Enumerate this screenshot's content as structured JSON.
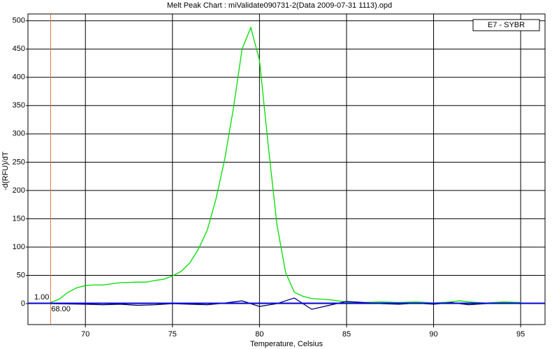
{
  "chart_data": {
    "type": "line",
    "title": "Melt Peak Chart : miValidate090731-2(Data 2009-07-31 1113).opd",
    "x_label": "Temperature, Celsius",
    "y_label": "-d(RFU)/dT",
    "xlim": [
      66.7,
      96.4
    ],
    "ylim": [
      -37,
      512
    ],
    "xticks": [
      70,
      75,
      80,
      85,
      90,
      95
    ],
    "yticks": [
      0,
      50,
      100,
      150,
      200,
      250,
      300,
      350,
      400,
      450,
      500
    ],
    "grid": true,
    "legend": "top-right",
    "threshold": {
      "value": 1,
      "label": "1.00",
      "color": "#0000ff"
    },
    "marker_x": {
      "value": 68,
      "label": "68.00",
      "color": "#e07040"
    },
    "series": [
      {
        "name": "E7 - SYBR",
        "color": "#00dd00",
        "x": [
          68,
          68.5,
          69,
          69.5,
          70,
          70.5,
          71,
          71.5,
          72,
          73,
          73.5,
          74,
          74.5,
          75,
          75.5,
          76,
          76.5,
          77,
          77.5,
          78,
          78.5,
          79,
          79.5,
          80,
          80.5,
          81,
          81.5,
          82,
          82.5,
          83,
          84,
          85,
          86,
          87,
          88,
          89,
          90,
          91,
          91.5,
          92,
          93,
          94,
          95
        ],
        "values": [
          2,
          8,
          20,
          28,
          32,
          33,
          33,
          35,
          37,
          38,
          38,
          41,
          43,
          49,
          57,
          72,
          97,
          130,
          185,
          255,
          345,
          450,
          488,
          430,
          280,
          140,
          55,
          20,
          13,
          9,
          7,
          3,
          2,
          3,
          2,
          3,
          1,
          3,
          5,
          3,
          1,
          3,
          2
        ]
      },
      {
        "color": "#000080",
        "x": [
          68,
          70,
          71,
          72,
          73,
          74,
          75,
          76,
          77,
          78,
          79,
          80,
          81,
          82,
          83,
          84,
          85,
          86,
          87,
          88,
          89,
          90,
          91,
          92,
          93,
          94,
          95
        ],
        "values": [
          0,
          -1,
          -2,
          -1,
          -3,
          -2,
          0,
          -1,
          -2,
          1,
          5,
          -5,
          0,
          10,
          -10,
          -3,
          4,
          2,
          0,
          -1,
          1,
          -1,
          2,
          -2,
          0,
          1,
          0
        ]
      }
    ]
  }
}
